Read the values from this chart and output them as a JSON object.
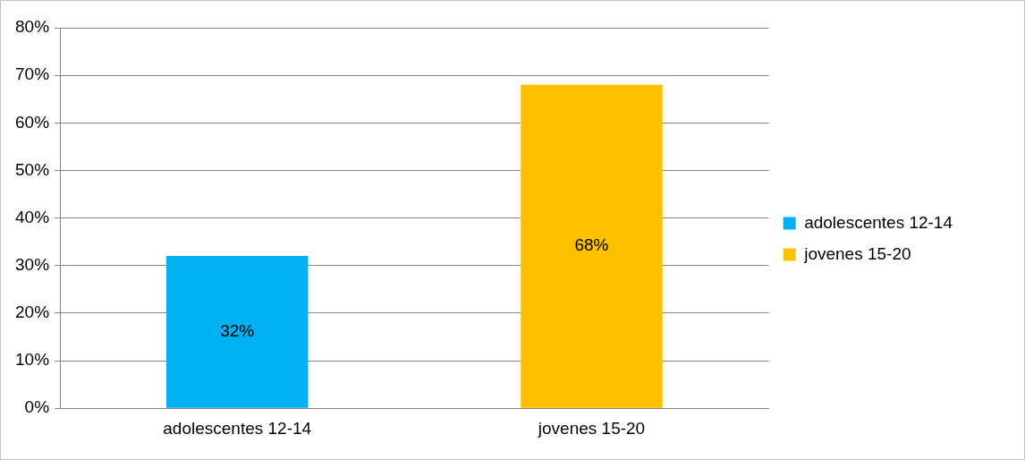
{
  "chart_data": {
    "type": "bar",
    "categories": [
      "adolescentes 12-14",
      "jovenes 15-20"
    ],
    "series": [
      {
        "name": "adolescentes 12-14",
        "color": "#00b0f0",
        "values": [
          32,
          null
        ],
        "value_labels": [
          "32%",
          null
        ]
      },
      {
        "name": "jovenes 15-20",
        "color": "#ffc000",
        "values": [
          null,
          68
        ],
        "value_labels": [
          null,
          "68%"
        ]
      }
    ],
    "ylim": [
      0,
      80
    ],
    "yticks": [
      {
        "value": 0,
        "label": "0%"
      },
      {
        "value": 10,
        "label": "10%"
      },
      {
        "value": 20,
        "label": "20%"
      },
      {
        "value": 30,
        "label": "30%"
      },
      {
        "value": 40,
        "label": "40%"
      },
      {
        "value": 50,
        "label": "50%"
      },
      {
        "value": 60,
        "label": "60%"
      },
      {
        "value": 70,
        "label": "70%"
      },
      {
        "value": 80,
        "label": "80%"
      }
    ],
    "grid": "y",
    "legend": "right"
  }
}
